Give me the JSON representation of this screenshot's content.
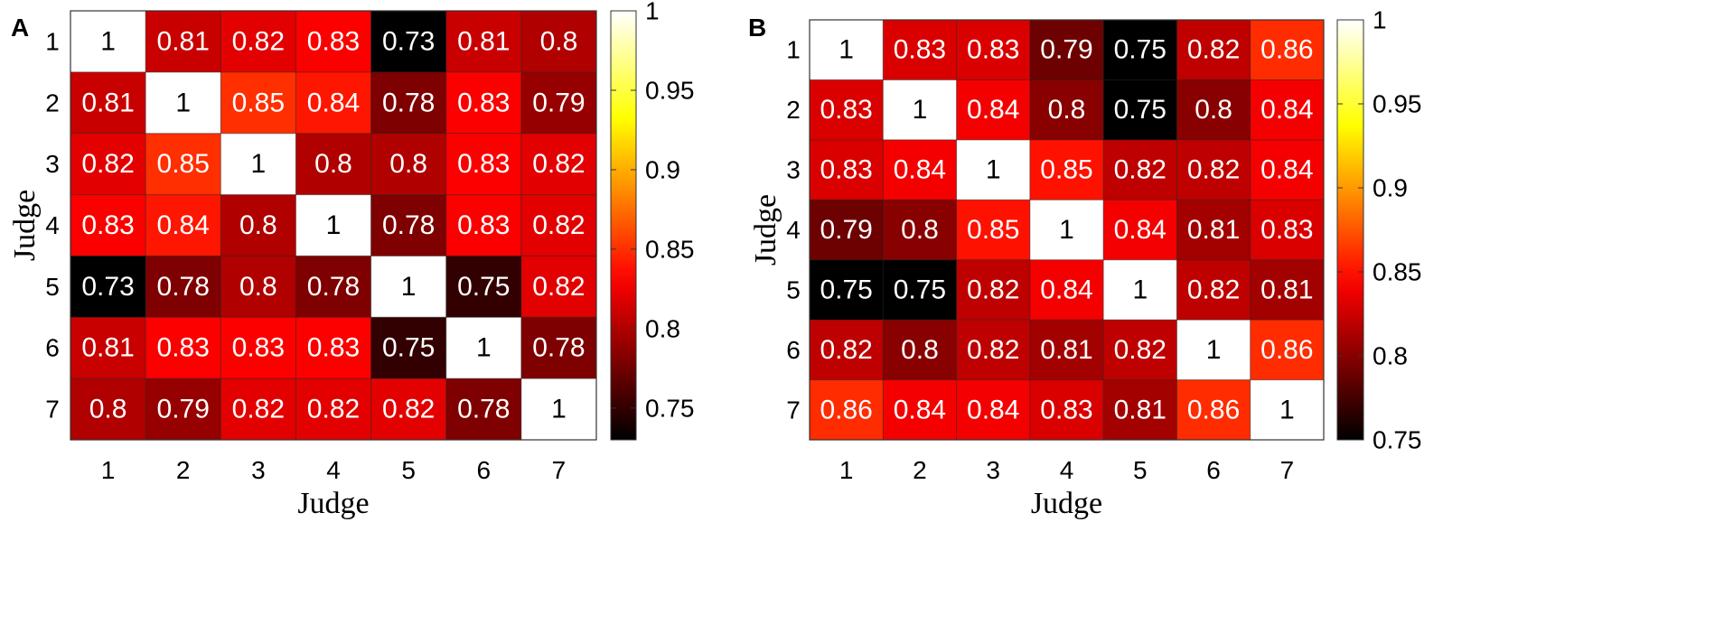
{
  "chart_data": [
    {
      "type": "heatmap",
      "panel": "A",
      "x_categories": [
        "1",
        "2",
        "3",
        "4",
        "5",
        "6",
        "7"
      ],
      "y_categories": [
        "1",
        "2",
        "3",
        "4",
        "5",
        "6",
        "7"
      ],
      "xlabel": "Judge",
      "ylabel": "Judge",
      "values": [
        [
          1,
          0.81,
          0.82,
          0.83,
          0.73,
          0.81,
          0.8
        ],
        [
          0.81,
          1,
          0.85,
          0.84,
          0.78,
          0.83,
          0.79
        ],
        [
          0.82,
          0.85,
          1,
          0.8,
          0.8,
          0.83,
          0.82
        ],
        [
          0.83,
          0.84,
          0.8,
          1,
          0.78,
          0.83,
          0.82
        ],
        [
          0.73,
          0.78,
          0.8,
          0.78,
          1,
          0.75,
          0.82
        ],
        [
          0.81,
          0.83,
          0.83,
          0.83,
          0.75,
          1,
          0.78
        ],
        [
          0.8,
          0.79,
          0.82,
          0.82,
          0.82,
          0.78,
          1
        ]
      ],
      "colormap": "hot",
      "clim": [
        0.73,
        1
      ],
      "colorbar_ticks": [
        "1",
        "0.95",
        "0.9",
        "0.85",
        "0.8",
        "0.75"
      ],
      "colorbar_tick_values": [
        1,
        0.95,
        0.9,
        0.85,
        0.8,
        0.75
      ]
    },
    {
      "type": "heatmap",
      "panel": "B",
      "x_categories": [
        "1",
        "2",
        "3",
        "4",
        "5",
        "6",
        "7"
      ],
      "y_categories": [
        "1",
        "2",
        "3",
        "4",
        "5",
        "6",
        "7"
      ],
      "xlabel": "Judge",
      "ylabel": "Judge",
      "values": [
        [
          1,
          0.83,
          0.83,
          0.79,
          0.75,
          0.82,
          0.86
        ],
        [
          0.83,
          1,
          0.84,
          0.8,
          0.75,
          0.8,
          0.84
        ],
        [
          0.83,
          0.84,
          1,
          0.85,
          0.82,
          0.82,
          0.84
        ],
        [
          0.79,
          0.8,
          0.85,
          1,
          0.84,
          0.81,
          0.83
        ],
        [
          0.75,
          0.75,
          0.82,
          0.84,
          1,
          0.82,
          0.81
        ],
        [
          0.82,
          0.8,
          0.82,
          0.81,
          0.82,
          1,
          0.86
        ],
        [
          0.86,
          0.84,
          0.84,
          0.83,
          0.81,
          0.86,
          1
        ]
      ],
      "colormap": "hot",
      "clim": [
        0.75,
        1
      ],
      "colorbar_ticks": [
        "1",
        "0.95",
        "0.9",
        "0.85",
        "0.8",
        "0.75"
      ],
      "colorbar_tick_values": [
        1,
        0.95,
        0.9,
        0.85,
        0.8,
        0.75
      ]
    }
  ]
}
